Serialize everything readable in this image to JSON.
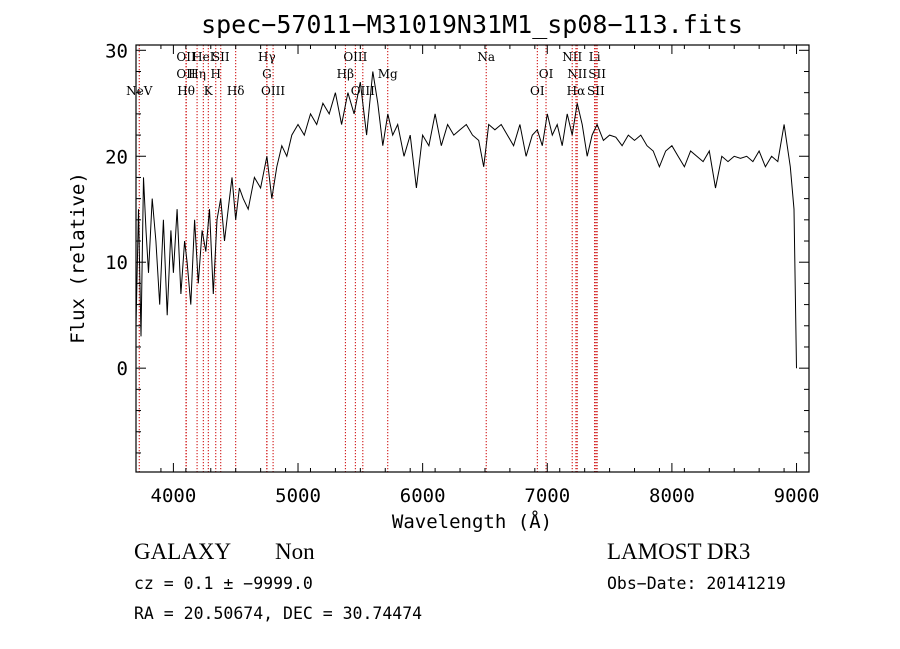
{
  "chart_data": {
    "type": "line",
    "title": "spec−57011−M31019N31M1_sp08−113.fits",
    "xlabel": "Wavelength (Å)",
    "ylabel": "Flux (relative)",
    "xlim": [
      3700,
      9100
    ],
    "ylim": [
      -9.8,
      30.5
    ],
    "x_ticks": [
      4000,
      5000,
      6000,
      7000,
      8000,
      9000
    ],
    "y_ticks": [
      0,
      10,
      20,
      30
    ],
    "series": [
      {
        "name": "flux",
        "x": [
          3700,
          3720,
          3740,
          3760,
          3780,
          3800,
          3830,
          3860,
          3890,
          3920,
          3950,
          3980,
          4000,
          4030,
          4060,
          4090,
          4110,
          4140,
          4170,
          4200,
          4230,
          4260,
          4290,
          4320,
          4350,
          4380,
          4410,
          4440,
          4470,
          4500,
          4530,
          4560,
          4600,
          4650,
          4700,
          4750,
          4790,
          4830,
          4870,
          4910,
          4950,
          5000,
          5050,
          5100,
          5150,
          5200,
          5250,
          5300,
          5350,
          5400,
          5450,
          5500,
          5550,
          5600,
          5640,
          5680,
          5720,
          5760,
          5800,
          5850,
          5900,
          5950,
          6000,
          6050,
          6100,
          6150,
          6200,
          6250,
          6300,
          6350,
          6400,
          6450,
          6490,
          6530,
          6580,
          6630,
          6680,
          6730,
          6780,
          6830,
          6880,
          6920,
          6960,
          7000,
          7040,
          7080,
          7120,
          7160,
          7200,
          7240,
          7280,
          7320,
          7360,
          7400,
          7450,
          7500,
          7550,
          7600,
          7650,
          7700,
          7750,
          7800,
          7850,
          7900,
          7950,
          8000,
          8050,
          8100,
          8150,
          8200,
          8250,
          8300,
          8350,
          8400,
          8450,
          8500,
          8550,
          8600,
          8650,
          8700,
          8750,
          8800,
          8850,
          8900,
          8950,
          8980,
          9000
        ],
        "y": [
          4,
          15,
          3,
          18,
          13,
          9,
          16,
          12,
          6,
          14,
          5,
          13,
          9,
          15,
          7,
          12,
          10,
          6,
          14,
          8,
          13,
          11,
          15,
          7,
          14,
          16,
          12,
          15,
          18,
          14,
          17,
          16,
          15,
          18,
          17,
          20,
          16,
          19,
          21,
          20,
          22,
          23,
          22,
          24,
          23,
          25,
          24,
          26,
          23,
          26,
          24,
          27,
          22,
          28,
          25,
          21,
          24,
          22,
          23,
          20,
          22,
          17,
          22,
          21,
          24,
          21,
          23,
          22,
          22.5,
          23,
          22,
          21.5,
          19,
          23,
          22.5,
          23,
          22,
          21,
          23,
          20,
          22,
          22.5,
          21,
          24,
          22,
          23,
          21,
          24,
          22,
          25,
          23,
          20,
          22,
          23,
          21.5,
          22,
          21.8,
          21,
          22,
          21.5,
          22,
          21,
          20.5,
          19,
          20.5,
          21,
          20,
          19,
          20.5,
          20,
          19.5,
          20.5,
          17,
          20,
          19.5,
          20,
          19.8,
          20,
          19.5,
          20.5,
          19,
          20,
          19.5,
          23,
          19,
          15,
          0
        ]
      }
    ],
    "emission_lines": [
      {
        "name": "NeV",
        "x": 3726,
        "row": 3
      },
      {
        "name": "OII",
        "x": 4102,
        "row": 0
      },
      {
        "name": "OII",
        "x": 4102,
        "row": 1
      },
      {
        "name": "Hθ",
        "x": 4102,
        "row": 2
      },
      {
        "name": "Hη",
        "x": 4190,
        "row": 1
      },
      {
        "name": "HeI",
        "x": 4240,
        "row": 0
      },
      {
        "name": "K",
        "x": 4280,
        "row": 2
      },
      {
        "name": "H",
        "x": 4340,
        "row": 1
      },
      {
        "name": "SII",
        "x": 4380,
        "row": 0
      },
      {
        "name": "Hδ",
        "x": 4500,
        "row": 2
      },
      {
        "name": "Hγ",
        "x": 4750,
        "row": 0
      },
      {
        "name": "G",
        "x": 4750,
        "row": 1
      },
      {
        "name": "OIII",
        "x": 4800,
        "row": 2
      },
      {
        "name": "Hβ",
        "x": 5380,
        "row": 1
      },
      {
        "name": "OIII",
        "x": 5460,
        "row": 0
      },
      {
        "name": "OIII",
        "x": 5520,
        "row": 2
      },
      {
        "name": "Mg",
        "x": 5720,
        "row": 1
      },
      {
        "name": "Na",
        "x": 6510,
        "row": 0
      },
      {
        "name": "OI",
        "x": 6920,
        "row": 2
      },
      {
        "name": "OI",
        "x": 6990,
        "row": 1
      },
      {
        "name": "NII",
        "x": 7200,
        "row": 0
      },
      {
        "name": "NII",
        "x": 7240,
        "row": 1
      },
      {
        "name": "Hα",
        "x": 7230,
        "row": 2
      },
      {
        "name": "Li",
        "x": 7380,
        "row": 0
      },
      {
        "name": "SII",
        "x": 7400,
        "row": 1
      },
      {
        "name": "SII",
        "x": 7390,
        "row": 2
      }
    ]
  },
  "info": {
    "classification": "GALAXY",
    "subclass": "Non",
    "survey": "LAMOST DR3",
    "cz": "cz = 0.1 ± −9999.0",
    "obs_date": "Obs−Date: 20141219",
    "radec": "RA =  20.50674, DEC =  30.74474"
  },
  "colors": {
    "axis": "#000000",
    "spectrum": "#000000",
    "emission_line": "#cc0000"
  }
}
